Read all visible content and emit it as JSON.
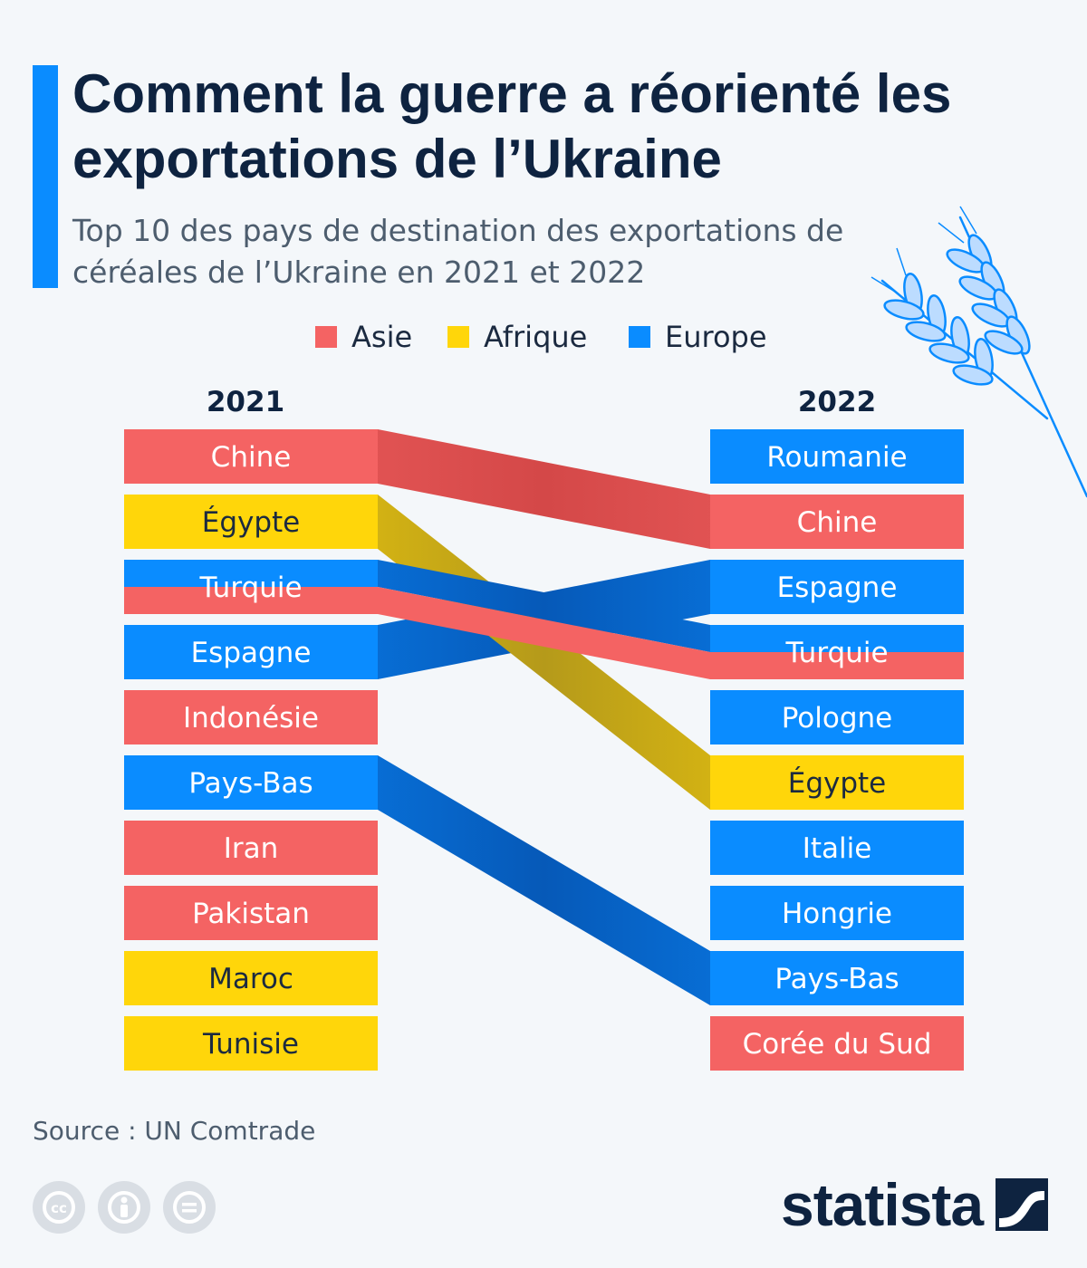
{
  "title": "Comment la guerre a réorienté les exportations de l’Ukraine",
  "subtitle": "Top 10 des pays de destination des exportations de céréales de l’Ukraine en 2021 et 2022",
  "colors": {
    "accent": "#0a8cff",
    "Asie": "#f46363",
    "Afrique": "#ffd60a",
    "Europe": "#0a8cff"
  },
  "legend": [
    {
      "label": "Asie",
      "region": "Asie"
    },
    {
      "label": "Afrique",
      "region": "Afrique"
    },
    {
      "label": "Europe",
      "region": "Europe"
    }
  ],
  "chart_data": {
    "type": "slope-ranking",
    "title": "Top 10 des pays de destination des exportations de céréales de l’Ukraine en 2021 et 2022",
    "columns": [
      "2021",
      "2022"
    ],
    "rank_2021": [
      {
        "rank": 1,
        "country": "Chine",
        "region": "Asie"
      },
      {
        "rank": 2,
        "country": "Égypte",
        "region": "Afrique"
      },
      {
        "rank": 3,
        "country": "Turquie",
        "region": "Asie/Europe"
      },
      {
        "rank": 4,
        "country": "Espagne",
        "region": "Europe"
      },
      {
        "rank": 5,
        "country": "Indonésie",
        "region": "Asie"
      },
      {
        "rank": 6,
        "country": "Pays-Bas",
        "region": "Europe"
      },
      {
        "rank": 7,
        "country": "Iran",
        "region": "Asie"
      },
      {
        "rank": 8,
        "country": "Pakistan",
        "region": "Asie"
      },
      {
        "rank": 9,
        "country": "Maroc",
        "region": "Afrique"
      },
      {
        "rank": 10,
        "country": "Tunisie",
        "region": "Afrique"
      }
    ],
    "rank_2022": [
      {
        "rank": 1,
        "country": "Roumanie",
        "region": "Europe"
      },
      {
        "rank": 2,
        "country": "Chine",
        "region": "Asie"
      },
      {
        "rank": 3,
        "country": "Espagne",
        "region": "Europe"
      },
      {
        "rank": 4,
        "country": "Turquie",
        "region": "Asie/Europe"
      },
      {
        "rank": 5,
        "country": "Pologne",
        "region": "Europe"
      },
      {
        "rank": 6,
        "country": "Égypte",
        "region": "Afrique"
      },
      {
        "rank": 7,
        "country": "Italie",
        "region": "Europe"
      },
      {
        "rank": 8,
        "country": "Hongrie",
        "region": "Europe"
      },
      {
        "rank": 9,
        "country": "Pays-Bas",
        "region": "Europe"
      },
      {
        "rank": 10,
        "country": "Corée du Sud",
        "region": "Asie"
      }
    ],
    "flows": [
      {
        "country": "Chine",
        "from_rank": 1,
        "to_rank": 2
      },
      {
        "country": "Égypte",
        "from_rank": 2,
        "to_rank": 6
      },
      {
        "country": "Turquie",
        "from_rank": 3,
        "to_rank": 4
      },
      {
        "country": "Espagne",
        "from_rank": 4,
        "to_rank": 3
      },
      {
        "country": "Pays-Bas",
        "from_rank": 6,
        "to_rank": 9
      }
    ]
  },
  "source": "Source : UN Comtrade",
  "brand": "statista",
  "icons": [
    "wheat-icon",
    "cc-icon",
    "by-icon",
    "nd-icon",
    "statista-logo-icon"
  ]
}
